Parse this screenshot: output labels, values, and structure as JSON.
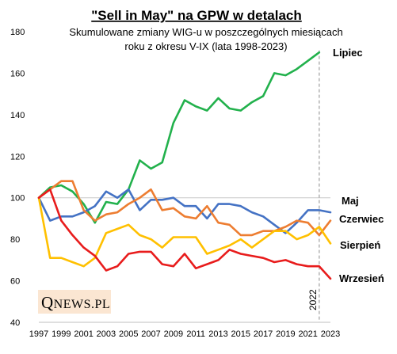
{
  "chart_data": {
    "type": "line",
    "title": "\"Sell in May\" na GPW w detalach",
    "subtitle": [
      "Skumulowane  zmiany WIG-u w poszczególnych miesiącach",
      "roku z okresu V-IX (lata 1998-2023)"
    ],
    "xlabel": "",
    "ylabel": "",
    "xlim": [
      1997,
      2023
    ],
    "ylim": [
      40,
      180
    ],
    "x_ticks": [
      1997,
      1999,
      2001,
      2003,
      2005,
      2007,
      2009,
      2011,
      2013,
      2015,
      2017,
      2019,
      2021,
      2023
    ],
    "y_ticks": [
      40,
      60,
      80,
      100,
      120,
      140,
      160,
      180
    ],
    "reference_line": 100,
    "marker_year": 2022,
    "marker_label": "2022",
    "x": [
      1997,
      1998,
      1999,
      2000,
      2001,
      2002,
      2003,
      2004,
      2005,
      2006,
      2007,
      2008,
      2009,
      2010,
      2011,
      2012,
      2013,
      2014,
      2015,
      2016,
      2017,
      2018,
      2019,
      2020,
      2021,
      2022,
      2023
    ],
    "series": [
      {
        "name": "Lipiec",
        "color": "#22b14c",
        "values": [
          100,
          105,
          106,
          103,
          97,
          88,
          98,
          97,
          104,
          118,
          114,
          117,
          136,
          147,
          144,
          142,
          148,
          143,
          142,
          146,
          149,
          160,
          159,
          162,
          166,
          170,
          null
        ]
      },
      {
        "name": "Maj",
        "color": "#4472c4",
        "values": [
          100,
          89,
          91,
          91,
          93,
          96,
          103,
          100,
          104,
          94,
          99,
          99,
          100,
          96,
          96,
          90,
          97,
          97,
          96,
          93,
          91,
          87,
          83,
          88,
          94,
          94,
          93
        ]
      },
      {
        "name": "Czerwiec",
        "color": "#ed7d31",
        "values": [
          100,
          104,
          108,
          108,
          94,
          89,
          92,
          93,
          97,
          100,
          104,
          94,
          95,
          91,
          90,
          96,
          88,
          87,
          82,
          82,
          84,
          84,
          86,
          89,
          88,
          82,
          89
        ]
      },
      {
        "name": "Sierpień",
        "color": "#ffc000",
        "values": [
          100,
          71,
          71,
          69,
          67,
          71,
          83,
          85,
          87,
          82,
          80,
          76,
          81,
          81,
          81,
          73,
          75,
          77,
          80,
          76,
          80,
          84,
          84,
          80,
          82,
          86,
          78
        ]
      },
      {
        "name": "Wrzesień",
        "color": "#e81c1c",
        "values": [
          100,
          104,
          89,
          82,
          76,
          72,
          65,
          67,
          73,
          74,
          74,
          68,
          67,
          73,
          66,
          68,
          70,
          75,
          73,
          72,
          71,
          69,
          70,
          68,
          67,
          67,
          61
        ]
      }
    ]
  },
  "logo": {
    "first": "Q",
    "rest": "NEWS.PL"
  }
}
